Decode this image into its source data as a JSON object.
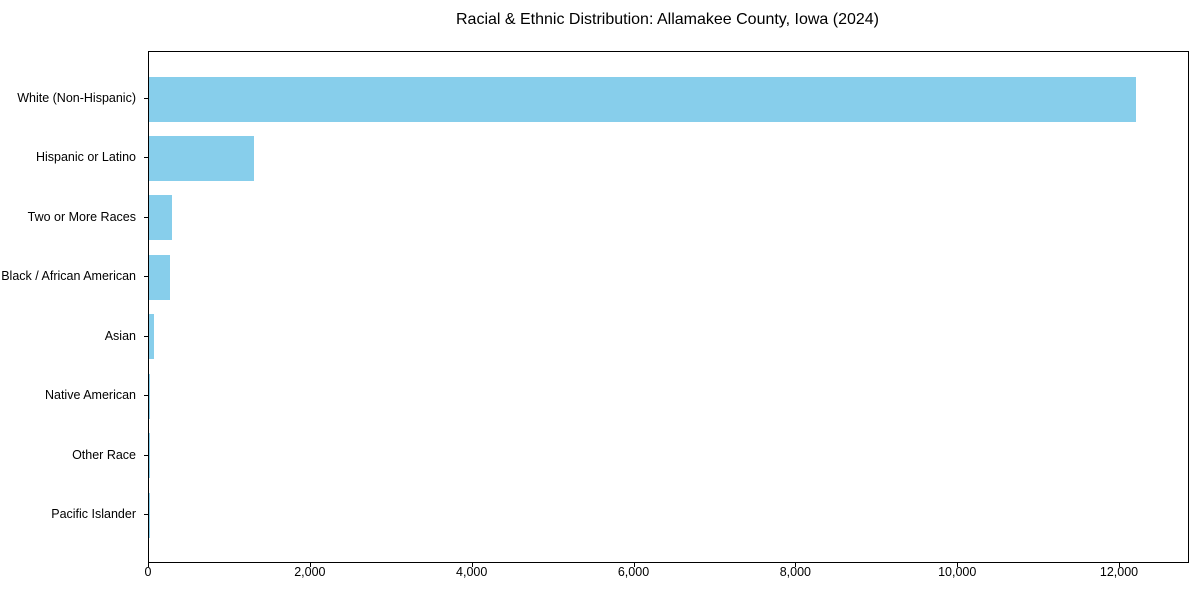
{
  "chart_data": {
    "type": "bar",
    "orientation": "horizontal",
    "title": "Racial & Ethnic Distribution: Allamakee County, Iowa (2024)",
    "categories": [
      "White (Non-Hispanic)",
      "Hispanic or Latino",
      "Two or More Races",
      "Black / African American",
      "Asian",
      "Native American",
      "Other Race",
      "Pacific Islander"
    ],
    "values": [
      12200,
      1300,
      285,
      260,
      65,
      10,
      8,
      3
    ],
    "xlabel": "",
    "ylabel": "",
    "xlim": [
      0,
      12840
    ],
    "x_ticks": [
      0,
      2000,
      4000,
      6000,
      8000,
      10000,
      12000
    ],
    "x_tick_labels": [
      "0",
      "2,000",
      "4,000",
      "6,000",
      "8,000",
      "10,000",
      "12,000"
    ],
    "bar_color": "#87CEEB",
    "spine_color": "#000000",
    "text_color": "#000000",
    "grid": false,
    "legend": null
  }
}
